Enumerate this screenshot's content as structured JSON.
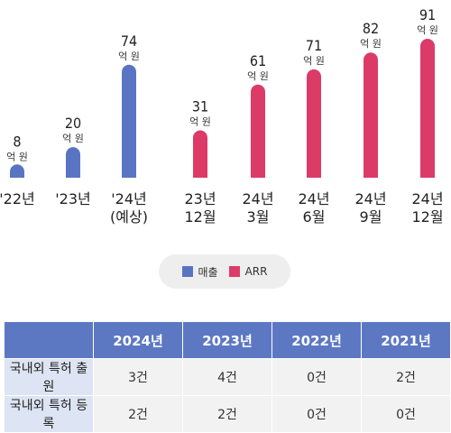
{
  "chart_data": {
    "type": "bar",
    "unit_label": "억 원",
    "series": [
      {
        "name": "매출",
        "color": "#5a74c4"
      },
      {
        "name": "ARR",
        "color": "#dc3b68"
      }
    ],
    "bars": [
      {
        "category": "'22년",
        "value": 8,
        "series": "매출"
      },
      {
        "category": "'23년",
        "value": 20,
        "series": "매출"
      },
      {
        "category": "'24년\n(예상)",
        "value": 74,
        "series": "매출"
      },
      {
        "category": "23년\n12월",
        "value": 31,
        "series": "ARR"
      },
      {
        "category": "24년\n3월",
        "value": 61,
        "series": "ARR"
      },
      {
        "category": "24년\n6월",
        "value": 71,
        "series": "ARR"
      },
      {
        "category": "24년\n9월",
        "value": 82,
        "series": "ARR"
      },
      {
        "category": "24년\n12월",
        "value": 91,
        "series": "ARR"
      }
    ]
  },
  "legend": {
    "revenue_label": "매출",
    "arr_label": "ARR",
    "revenue_color": "#5a74c4",
    "arr_color": "#dc3b68"
  },
  "table": {
    "corner": "",
    "columns": [
      "2024년",
      "2023년",
      "2022년",
      "2021년"
    ],
    "rows": [
      {
        "label": "국내외 특허 출원",
        "values": [
          "3건",
          "4건",
          "0건",
          "2건"
        ]
      },
      {
        "label": "국내외 특허 등록",
        "values": [
          "2건",
          "2건",
          "0건",
          "0건"
        ]
      }
    ]
  }
}
